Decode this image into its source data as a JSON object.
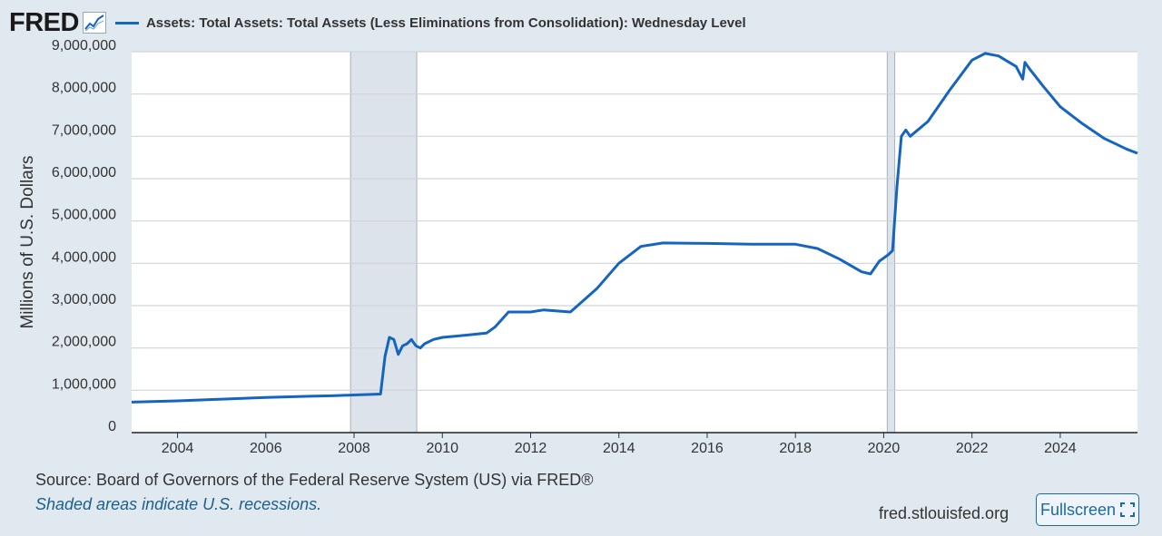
{
  "header": {
    "logo_text": "FRED",
    "logo_icon": "trend-line-icon"
  },
  "chart_data": {
    "type": "line",
    "title": "",
    "legend_position": "top-left",
    "grid": true,
    "xlabel": "",
    "ylabel": "Millions of U.S. Dollars",
    "xlim": [
      2002.96,
      2025.75
    ],
    "ylim": [
      0,
      9000000
    ],
    "x_ticks": [
      2004,
      2006,
      2008,
      2010,
      2012,
      2014,
      2016,
      2018,
      2020,
      2022,
      2024
    ],
    "x_tick_labels": [
      "2004",
      "2006",
      "2008",
      "2010",
      "2012",
      "2014",
      "2016",
      "2018",
      "2020",
      "2022",
      "2024"
    ],
    "y_ticks": [
      0,
      1000000,
      2000000,
      3000000,
      4000000,
      5000000,
      6000000,
      7000000,
      8000000,
      9000000
    ],
    "y_tick_labels": [
      "0",
      "1,000,000",
      "2,000,000",
      "3,000,000",
      "4,000,000",
      "5,000,000",
      "6,000,000",
      "7,000,000",
      "8,000,000",
      "9,000,000"
    ],
    "recessions": [
      [
        2007.92,
        2009.42
      ],
      [
        2020.08,
        2020.25
      ]
    ],
    "colors": {
      "line": "#1565c0",
      "recession_shade": "#dde3ea",
      "plot_background": "#ffffff",
      "grid": "#d0d4d8"
    },
    "series": [
      {
        "name": "Assets: Total Assets: Total Assets (Less Eliminations from Consolidation): Wednesday Level",
        "x": [
          2002.96,
          2004.0,
          2005.0,
          2006.0,
          2007.0,
          2007.5,
          2008.0,
          2008.3,
          2008.6,
          2008.7,
          2008.8,
          2008.9,
          2009.0,
          2009.1,
          2009.2,
          2009.3,
          2009.4,
          2009.5,
          2009.6,
          2009.8,
          2010.0,
          2010.5,
          2011.0,
          2011.2,
          2011.5,
          2012.0,
          2012.3,
          2012.9,
          2013.5,
          2014.0,
          2014.5,
          2015.0,
          2016.0,
          2017.0,
          2018.0,
          2018.5,
          2019.0,
          2019.5,
          2019.7,
          2019.9,
          2020.1,
          2020.2,
          2020.3,
          2020.4,
          2020.5,
          2020.6,
          2021.0,
          2021.5,
          2022.0,
          2022.3,
          2022.6,
          2023.0,
          2023.15,
          2023.2,
          2023.3,
          2023.6,
          2024.0,
          2024.5,
          2025.0,
          2025.5,
          2025.75
        ],
        "values": [
          720000,
          750000,
          790000,
          830000,
          860000,
          870000,
          890000,
          900000,
          910000,
          1800000,
          2250000,
          2200000,
          1850000,
          2050000,
          2100000,
          2200000,
          2050000,
          2000000,
          2100000,
          2200000,
          2250000,
          2300000,
          2350000,
          2500000,
          2850000,
          2850000,
          2900000,
          2850000,
          3400000,
          4000000,
          4400000,
          4480000,
          4470000,
          4450000,
          4450000,
          4350000,
          4100000,
          3800000,
          3750000,
          4050000,
          4200000,
          4300000,
          5800000,
          7000000,
          7150000,
          7000000,
          7350000,
          8100000,
          8800000,
          8960000,
          8900000,
          8650000,
          8350000,
          8750000,
          8600000,
          8200000,
          7700000,
          7300000,
          6950000,
          6700000,
          6600000
        ]
      }
    ]
  },
  "footer": {
    "source": "Source: Board of Governors of the Federal Reserve System (US) via FRED®",
    "note": "Shaded areas indicate U.S. recessions.",
    "url": "fred.stlouisfed.org",
    "fullscreen_label": "Fullscreen",
    "fullscreen_icon": "expand-icon"
  }
}
